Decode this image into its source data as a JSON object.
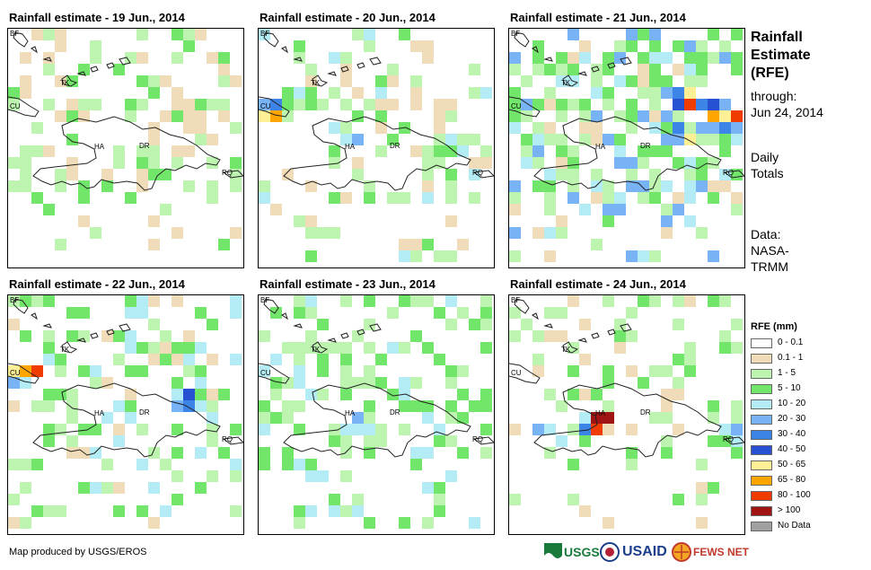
{
  "panels": [
    {
      "title": "Rainfall estimate - 19 Jun., 2014"
    },
    {
      "title": "Rainfall estimate - 20 Jun., 2014"
    },
    {
      "title": "Rainfall estimate - 21 Jun., 2014"
    },
    {
      "title": "Rainfall estimate - 22 Jun., 2014"
    },
    {
      "title": "Rainfall estimate - 23 Jun., 2014"
    },
    {
      "title": "Rainfall estimate - 24 Jun., 2014"
    }
  ],
  "map_labels": {
    "bf": "BF",
    "tk": "TK",
    "cu": "CU",
    "ha": "HA",
    "dr": "DR",
    "rq": "RQ"
  },
  "sidebar": {
    "title_line1": "Rainfall",
    "title_line2": "Estimate",
    "title_line3": "(RFE)",
    "through": "through:",
    "date": "Jun 24, 2014",
    "daily": "Daily",
    "totals": "Totals",
    "data_label": "Data:",
    "data_src1": "NASA-",
    "data_src2": "TRMM"
  },
  "legend": {
    "title": "RFE (mm)",
    "items": [
      {
        "label": "0 - 0.1",
        "color": "#ffffff"
      },
      {
        "label": "0.1 - 1",
        "color": "#f0dcb8"
      },
      {
        "label": "1 - 5",
        "color": "#bdf5b0"
      },
      {
        "label": "5 - 10",
        "color": "#72e66a"
      },
      {
        "label": "10 - 20",
        "color": "#b4ecf5"
      },
      {
        "label": "20 - 30",
        "color": "#78b4f5"
      },
      {
        "label": "30 - 40",
        "color": "#3c84e6"
      },
      {
        "label": "40 - 50",
        "color": "#2850d2"
      },
      {
        "label": "50 - 65",
        "color": "#fff096"
      },
      {
        "label": "65 - 80",
        "color": "#ffa500"
      },
      {
        "label": "80 - 100",
        "color": "#f03c00"
      },
      {
        "label": "> 100",
        "color": "#a01414"
      },
      {
        "label": "No Data",
        "color": "#a0a0a0"
      }
    ]
  },
  "footer": {
    "credit": "Map produced by USGS/EROS"
  },
  "logos": {
    "usgs": "USGS",
    "usaid": "USAID",
    "fewsnet": "FEWS NET"
  }
}
